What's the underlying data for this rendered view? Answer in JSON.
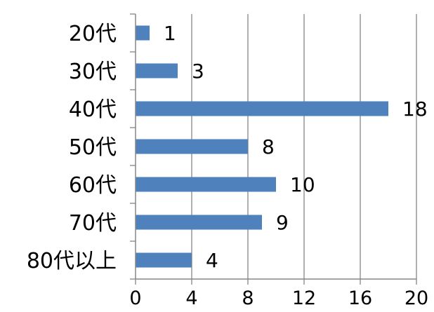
{
  "chart_data": {
    "type": "bar",
    "orientation": "horizontal",
    "categories": [
      "20代",
      "30代",
      "40代",
      "50代",
      "60代",
      "70代",
      "80代以上"
    ],
    "values": [
      1,
      3,
      18,
      8,
      10,
      9,
      4
    ],
    "data_labels": [
      "1",
      "3",
      "18",
      "8",
      "10",
      "9",
      "4"
    ],
    "x_ticks": [
      "0",
      "4",
      "8",
      "12",
      "16",
      "20"
    ],
    "xlim": [
      0,
      20
    ],
    "xlabel": "",
    "ylabel": "",
    "grid": "vertical",
    "legend": "none",
    "bar_color": "#4F81BD",
    "grid_color": "#868686",
    "axis_color": "#868686"
  }
}
